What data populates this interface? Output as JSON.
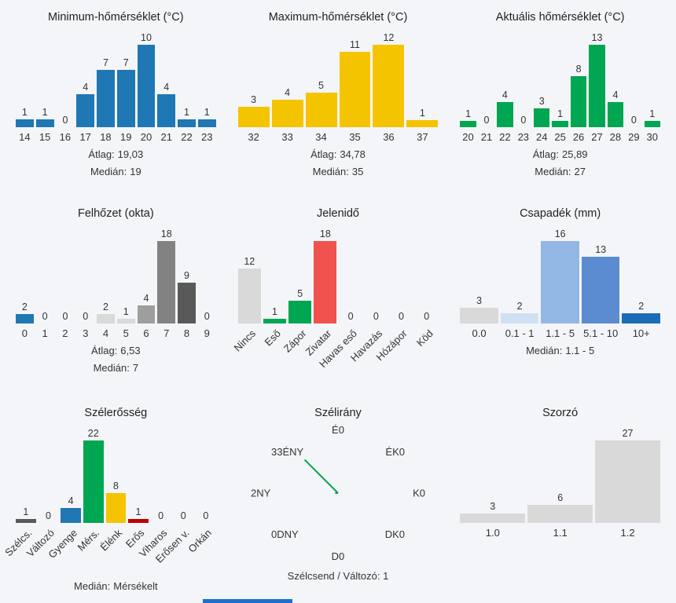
{
  "page": {
    "background": "#f4f5f8",
    "bottom_strip_color": "#1b6fd0"
  },
  "stat_labels": {
    "average": "Átlag:",
    "median": "Medián:"
  },
  "chart_data": [
    {
      "type": "bar",
      "title": "Minimum-hőmérséklet (°C)",
      "categories": [
        "14",
        "15",
        "16",
        "17",
        "18",
        "19",
        "20",
        "21",
        "22",
        "23"
      ],
      "values": [
        1,
        1,
        0,
        4,
        7,
        7,
        10,
        4,
        1,
        1
      ],
      "color": "#1f77b4",
      "stats": [
        [
          "Átlag:",
          "19,03"
        ],
        [
          "Medián:",
          "19"
        ]
      ]
    },
    {
      "type": "bar",
      "title": "Maximum-hőmérséklet (°C)",
      "categories": [
        "32",
        "33",
        "34",
        "35",
        "36",
        "37"
      ],
      "values": [
        3,
        4,
        5,
        11,
        12,
        1
      ],
      "color": "#f5c400",
      "stats": [
        [
          "Átlag:",
          "34,78"
        ],
        [
          "Medián:",
          "35"
        ]
      ]
    },
    {
      "type": "bar",
      "title": "Aktuális hőmérséklet (°C)",
      "categories": [
        "20",
        "21",
        "22",
        "23",
        "24",
        "25",
        "26",
        "27",
        "28",
        "29",
        "30"
      ],
      "values": [
        1,
        0,
        4,
        0,
        3,
        1,
        8,
        13,
        4,
        0,
        1
      ],
      "color": "#00a651",
      "stats": [
        [
          "Átlag:",
          "25,89"
        ],
        [
          "Medián:",
          "27"
        ]
      ]
    },
    {
      "type": "bar",
      "title": "Felhőzet (okta)",
      "categories": [
        "0",
        "1",
        "2",
        "3",
        "4",
        "5",
        "6",
        "7",
        "8",
        "9"
      ],
      "values": [
        2,
        0,
        0,
        0,
        2,
        1,
        4,
        18,
        9,
        0
      ],
      "colors": [
        "#1f77b4",
        "#d9d9d9",
        "#d9d9d9",
        "#d9d9d9",
        "#d9d9d9",
        "#d9d9d9",
        "#9e9e9e",
        "#828282",
        "#595959",
        "#d9d9d9"
      ],
      "stats": [
        [
          "Átlag:",
          "6,53"
        ],
        [
          "Medián:",
          "7"
        ]
      ]
    },
    {
      "type": "bar",
      "title": "Jelenidő",
      "categories": [
        "Nincs",
        "Eső",
        "Zápor",
        "Zivatar",
        "Havas eső",
        "Havazás",
        "Hózápor",
        "Köd"
      ],
      "values": [
        12,
        1,
        5,
        18,
        0,
        0,
        0,
        0
      ],
      "colors": [
        "#d9d9d9",
        "#00a651",
        "#00a651",
        "#f0524f",
        "#d9d9d9",
        "#d9d9d9",
        "#d9d9d9",
        "#d9d9d9"
      ],
      "rotated": true,
      "stats": []
    },
    {
      "type": "bar",
      "title": "Csapadék (mm)",
      "categories": [
        "0.0",
        "0.1 - 1",
        "1.1 - 5",
        "5.1 - 10",
        "10+"
      ],
      "values": [
        3,
        2,
        16,
        13,
        2
      ],
      "colors": [
        "#d9d9d9",
        "#cfe0f3",
        "#93b7e4",
        "#5b8bd0",
        "#1b6db6"
      ],
      "stats": [
        [
          "Medián:",
          "1.1 - 5"
        ]
      ]
    },
    {
      "type": "bar",
      "title": "Szélerősség",
      "categories": [
        "Szélcs.",
        "Változó",
        "Gyenge",
        "Mérs.",
        "Élénk",
        "Erős",
        "Viharos",
        "Erősen v.",
        "Orkán"
      ],
      "values": [
        1,
        0,
        4,
        22,
        8,
        1,
        0,
        0,
        0
      ],
      "colors": [
        "#595959",
        "#d9d9d9",
        "#1f77b4",
        "#00a651",
        "#f5c400",
        "#c00000",
        "#d9d9d9",
        "#d9d9d9",
        "#d9d9d9"
      ],
      "rotated": true,
      "stats": [
        [
          "Medián:",
          "Mérsékelt"
        ]
      ]
    },
    {
      "type": "windrose",
      "title": "Szélirány",
      "directions": [
        {
          "pos": "n",
          "name": "É",
          "value": 0,
          "display": "É0"
        },
        {
          "pos": "ne",
          "name": "ÉK",
          "value": 0,
          "display": "ÉK0"
        },
        {
          "pos": "e",
          "name": "K",
          "value": 0,
          "display": "K0"
        },
        {
          "pos": "se",
          "name": "DK",
          "value": 0,
          "display": "DK0"
        },
        {
          "pos": "s",
          "name": "D",
          "value": 0,
          "display": "D0"
        },
        {
          "pos": "sw",
          "name": "DNY",
          "value": 0,
          "display": "0DNY"
        },
        {
          "pos": "w",
          "name": "NY",
          "value": 2,
          "display": "2NY"
        },
        {
          "pos": "nw",
          "name": "ÉNY",
          "value": 33,
          "display": "33ÉNY"
        }
      ],
      "max": 33,
      "ray_color": "#00a651",
      "footer": "Szélcsend / Változó: 1"
    },
    {
      "type": "bar",
      "title": "Szorzó",
      "categories": [
        "1.0",
        "1.1",
        "1.2"
      ],
      "values": [
        3,
        6,
        27
      ],
      "color": "#d9d9d9",
      "stats": []
    }
  ]
}
